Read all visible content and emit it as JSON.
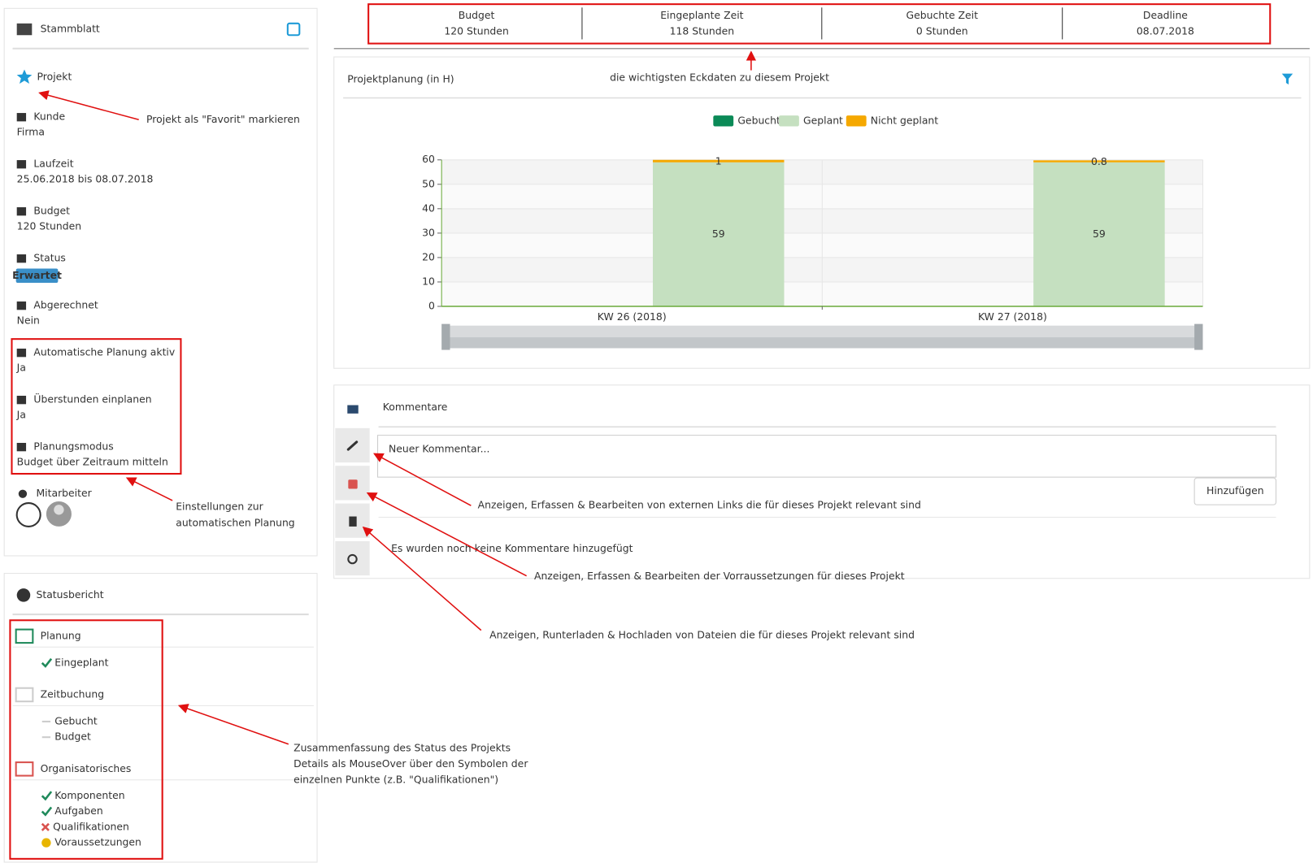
{
  "stammblatt": {
    "title": "Stammblatt",
    "project": "Projekt",
    "fields": [
      {
        "label": "Kunde",
        "value": "Firma"
      },
      {
        "label": "Laufzeit",
        "value": "25.06.2018 bis 08.07.2018"
      },
      {
        "label": "Budget",
        "value": "120 Stunden"
      },
      {
        "label": "Status",
        "value": "Erwartet",
        "badge": true
      },
      {
        "label": "Abgerechnet",
        "value": "Nein"
      },
      {
        "label": "Automatische Planung aktiv",
        "value": "Ja"
      },
      {
        "label": "Überstunden einplanen",
        "value": "Ja"
      },
      {
        "label": "Planungsmodus",
        "value": "Budget über Zeitraum mitteln"
      }
    ],
    "team_label": "Mitarbeiter"
  },
  "kpis": [
    {
      "label": "Budget",
      "value": "120 Stunden"
    },
    {
      "label": "Eingeplante Zeit",
      "value": "118 Stunden"
    },
    {
      "label": "Gebuchte Zeit",
      "value": "0 Stunden"
    },
    {
      "label": "Deadline",
      "value": "08.07.2018"
    }
  ],
  "chart_data": {
    "type": "bar",
    "stacked": true,
    "title": "Projektplanung (in H)",
    "categories": [
      "KW 26 (2018)",
      "KW 27 (2018)"
    ],
    "series": [
      {
        "name": "Gebucht",
        "color": "#0b8a57",
        "values": [
          0,
          0
        ]
      },
      {
        "name": "Geplant",
        "color": "#c5e0c0",
        "values": [
          59,
          59
        ]
      },
      {
        "name": "Nicht geplant",
        "color": "#f5a800",
        "values": [
          1,
          0.8
        ]
      }
    ],
    "ylim": [
      0,
      60
    ],
    "yticks": [
      0,
      10,
      20,
      30,
      40,
      50,
      60
    ],
    "grid": true,
    "legend": "top"
  },
  "comments": {
    "title": "Kommentare",
    "placeholder": "Neuer Kommentar...",
    "button": "Hinzufügen",
    "empty": "Es wurden noch keine Kommentare hinzugefügt"
  },
  "status_report": {
    "title": "Statusbericht",
    "sections": [
      {
        "title": "Planung",
        "items": [
          {
            "label": "Eingeplant",
            "state": "ok"
          }
        ]
      },
      {
        "title": "Zeitbuchung",
        "items": [
          {
            "label": "Gebucht",
            "state": "none"
          },
          {
            "label": "Budget",
            "state": "none"
          }
        ]
      },
      {
        "title": "Organisatorisches",
        "items": [
          {
            "label": "Komponenten",
            "state": "ok"
          },
          {
            "label": "Aufgaben",
            "state": "ok"
          },
          {
            "label": "Qualifikationen",
            "state": "error"
          },
          {
            "label": "Voraussetzungen",
            "state": "warn"
          }
        ]
      }
    ]
  },
  "annotations": [
    {
      "lines": [
        "die wichtigsten Eckdaten zu diesem Projekt"
      ]
    },
    {
      "lines": [
        "Projekt als \"Favorit\" markieren"
      ]
    },
    {
      "lines": [
        "Einstellungen zur",
        "automatischen Planung"
      ]
    },
    {
      "lines": [
        "Anzeigen, Erfassen & Bearbeiten von externen Links die für dieses Projekt relevant sind"
      ]
    },
    {
      "lines": [
        "Anzeigen, Erfassen & Bearbeiten der Vorraussetzungen für dieses Projekt"
      ]
    },
    {
      "lines": [
        "Anzeigen, Runterladen & Hochladen von Dateien die für dieses Projekt relevant sind"
      ]
    },
    {
      "lines": [
        "Zusammenfassung des Status des Projekts",
        "Details als MouseOver über den Symbolen der",
        "einzelnen Punkte (z.B. \"Qualifikationen\")"
      ]
    }
  ]
}
